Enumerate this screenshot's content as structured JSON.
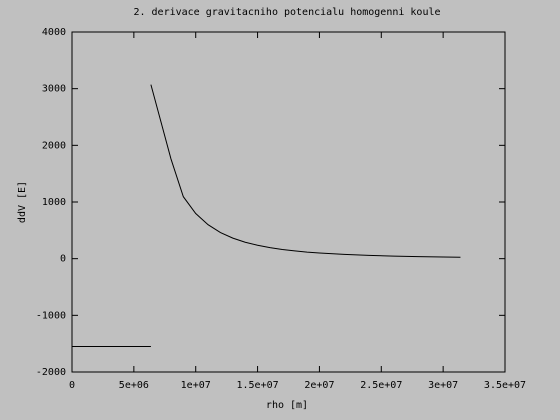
{
  "chart_data": {
    "type": "line",
    "title": "2. derivace gravitacniho potencialu homogenni koule",
    "x_label": "rho [m]",
    "y_label": "ddV [E]",
    "series": [
      {
        "color": "#000000",
        "x": [
          0,
          6378000
        ],
        "values": [
          -1550,
          -1550
        ]
      },
      {
        "color": "#000000",
        "x": [
          6378000,
          8000000,
          9000000,
          10000000,
          11000000,
          12000000,
          13000000,
          14000000,
          15000000,
          16000000,
          17000000,
          18000000,
          19000000,
          20000000,
          22000000,
          24000000,
          26000000,
          28000000,
          30000000,
          31400000
        ],
        "values": [
          3072,
          1760,
          1093,
          797,
          599,
          461,
          363,
          290,
          236,
          195,
          162,
          137,
          116,
          100,
          75,
          58,
          45,
          36,
          30,
          26
        ]
      }
    ],
    "xlim": [
      0,
      35000000
    ],
    "xticks": [
      0,
      {
        "value": 5000000,
        "label": "5e+06"
      },
      {
        "value": 10000000,
        "label": "1e+07"
      },
      {
        "value": 15000000,
        "label": "1.5e+07"
      },
      {
        "value": 20000000,
        "label": "2e+07"
      },
      {
        "value": 25000000,
        "label": "2.5e+07"
      },
      {
        "value": 30000000,
        "label": "3e+07"
      },
      {
        "value": 35000000,
        "label": "3.5e+07"
      }
    ],
    "ylim": [
      -2000,
      4000
    ],
    "yticks": [
      -2000,
      -1000,
      0,
      1000,
      2000,
      3000,
      4000
    ],
    "grid": false
  }
}
